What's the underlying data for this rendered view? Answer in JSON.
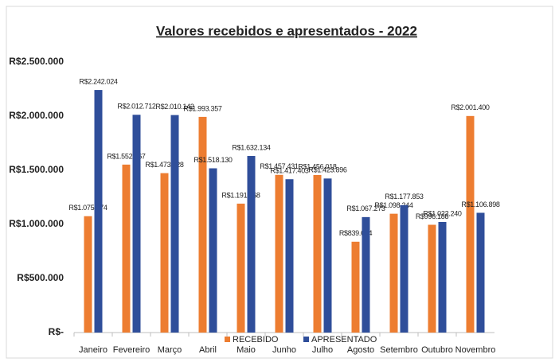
{
  "chart_data": {
    "type": "bar",
    "title": "Valores recebidos e apresentados - 2022",
    "categories": [
      "Janeiro",
      "Fevereiro",
      "Março",
      "Abril",
      "Maio",
      "Junho",
      "Julho",
      "Agosto",
      "Setembro",
      "Outubro",
      "Novembro"
    ],
    "series": [
      {
        "name": "RECEBIDO",
        "color": "#ed7d31",
        "values": [
          1075474,
          1552267,
          1473328,
          1993357,
          1191568,
          1457431,
          1456018,
          839684,
          1098244,
          996188,
          2001400
        ],
        "value_labels": [
          "R$1.075.474",
          "R$1.552.267",
          "R$1.473.328",
          "R$1.993.357",
          "R$1.191.568",
          "R$1.457.431",
          "R$1.456.018",
          "R$839.684",
          "R$1.098.244",
          "R$996.188",
          "R$2.001.400"
        ]
      },
      {
        "name": "APRESENTADO",
        "color": "#2f4e9a",
        "values": [
          2242024,
          2012712,
          2010142,
          1518130,
          1632134,
          1417403,
          1423896,
          1067273,
          1177853,
          1022240,
          1106898
        ],
        "value_labels": [
          "R$2.242.024",
          "R$2.012.712",
          "R$2.010.142",
          "R$1.518.130",
          "R$1.632.134",
          "R$1.417.403",
          "R$1.423.896",
          "R$1.067.273",
          "R$1.177.853",
          "R$1.022.240",
          "R$1.106.898"
        ]
      }
    ],
    "ylim": [
      0,
      2500000
    ],
    "yticks": [
      {
        "value": 0,
        "label": "R$-"
      },
      {
        "value": 500000,
        "label": "R$500.000"
      },
      {
        "value": 1000000,
        "label": "R$1.000.000"
      },
      {
        "value": 1500000,
        "label": "R$1.500.000"
      },
      {
        "value": 2000000,
        "label": "R$2.000.000"
      },
      {
        "value": 2500000,
        "label": "R$2.500.000"
      }
    ],
    "grid": false,
    "legend": "bottom"
  }
}
